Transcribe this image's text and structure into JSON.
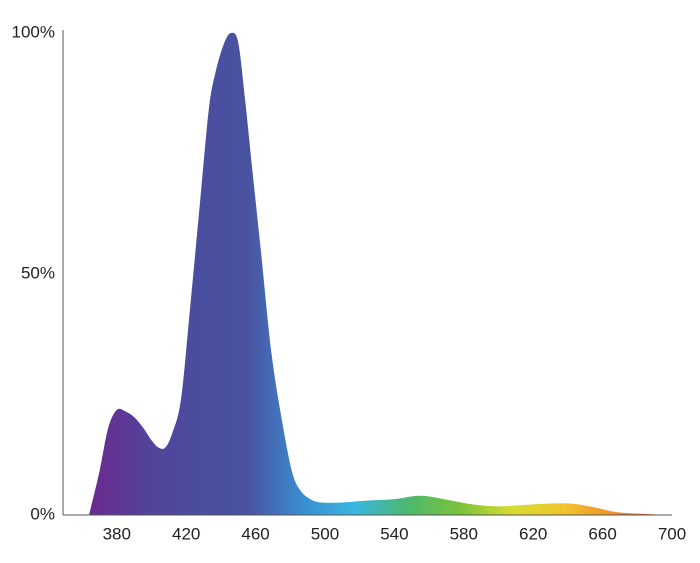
{
  "chart_data": {
    "type": "area",
    "x": [
      364,
      370,
      375,
      380,
      385,
      390,
      395,
      400,
      404,
      408,
      412,
      417,
      422,
      428,
      433,
      437,
      442,
      446,
      450,
      454,
      458,
      463,
      469,
      475,
      481,
      486,
      492,
      498,
      510,
      525,
      540,
      555,
      570,
      585,
      600,
      620,
      640,
      655,
      668,
      685,
      700
    ],
    "values": [
      0,
      9,
      18,
      21.8,
      21.5,
      20.3,
      18.2,
      15.5,
      14,
      14,
      17,
      24,
      42,
      65,
      84,
      92,
      98,
      100,
      98,
      86,
      72,
      55,
      34,
      20,
      9,
      5,
      3.2,
      2.6,
      2.6,
      3,
      3.3,
      4,
      3.2,
      2.2,
      1.8,
      2.2,
      2.4,
      1.6,
      0.6,
      0.2,
      0
    ],
    "fill_gradient": [
      "#6b2a8e",
      "#55409a",
      "#4a4d9e",
      "#4a52a0",
      "#3a8cd0",
      "#3ab6e2",
      "#4cb870",
      "#7cc23a",
      "#d8dc30",
      "#f0c22c",
      "#ee8a2a",
      "#e0432a"
    ],
    "xlim": [
      349,
      700
    ],
    "ylim": [
      0,
      100
    ],
    "xticks": [
      380,
      420,
      460,
      500,
      540,
      580,
      620,
      660,
      700
    ],
    "yticks": [
      {
        "value": 0,
        "label": "0%"
      },
      {
        "value": 50,
        "label": "50%"
      },
      {
        "value": 100,
        "label": "100%"
      }
    ],
    "grid": false
  }
}
